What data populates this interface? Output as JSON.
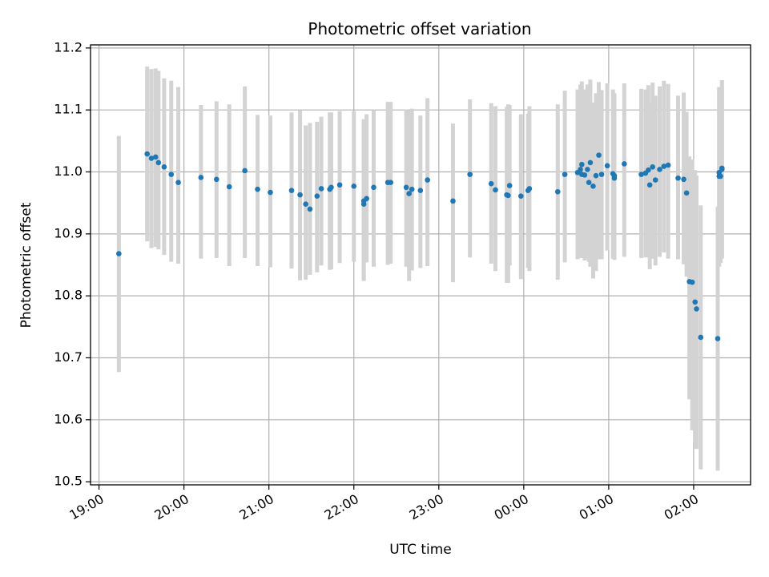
{
  "chart_data": {
    "type": "scatter",
    "title": "Photometric offset variation",
    "xlabel": "UTC time",
    "ylabel": "Photometric offset",
    "x_tick_labels": [
      "19:00",
      "20:00",
      "21:00",
      "22:00",
      "23:00",
      "00:00",
      "01:00",
      "02:00"
    ],
    "x_tick_hours": [
      19,
      20,
      21,
      22,
      23,
      24,
      25,
      26
    ],
    "y_ticks": [
      10.5,
      10.6,
      10.7,
      10.8,
      10.9,
      11.0,
      11.1,
      11.2
    ],
    "y_tick_labels": [
      "10.5",
      "10.6",
      "10.7",
      "10.8",
      "10.9",
      "11.0",
      "11.1",
      "11.2"
    ],
    "xlim_hours": [
      18.9,
      26.67
    ],
    "ylim": [
      10.495,
      11.205
    ],
    "grid": true,
    "colors": {
      "point": "#1f77b4",
      "errorbar": "#d3d3d3",
      "grid": "#b0b0b0"
    },
    "series": [
      {
        "time": [
          "19:14",
          "19:34",
          "19:37",
          "19:40",
          "19:42",
          "19:46",
          "19:51",
          "19:56",
          "20:12",
          "20:23",
          "20:32",
          "20:43",
          "20:52",
          "21:01",
          "21:16",
          "21:22",
          "21:26",
          "21:29",
          "21:34",
          "21:37",
          "21:43",
          "21:44",
          "21:50",
          "22:00",
          "22:07",
          "22:07",
          "22:09",
          "22:14",
          "22:24",
          "22:26",
          "22:37",
          "22:39",
          "22:41",
          "22:47",
          "22:52",
          "23:10",
          "23:22",
          "23:37",
          "23:40",
          "23:48",
          "23:49",
          "23:50",
          "23:58",
          "00:03",
          "00:04",
          "00:24",
          "00:29",
          "00:38",
          "00:40",
          "00:41",
          "00:41",
          "00:43",
          "00:45",
          "00:46",
          "00:47",
          "00:49",
          "00:51",
          "00:53",
          "00:55",
          "00:59",
          "01:03",
          "01:04",
          "01:04",
          "01:11",
          "01:23",
          "01:26",
          "01:28",
          "01:29",
          "01:31",
          "01:33",
          "01:36",
          "01:39",
          "01:42",
          "01:49",
          "01:53",
          "01:55",
          "01:57",
          "01:59",
          "02:01",
          "02:02",
          "02:05",
          "02:17",
          "02:18",
          "02:18",
          "02:19",
          "02:20",
          "02:20"
        ],
        "offset": [
          10.868,
          11.029,
          11.022,
          11.024,
          11.015,
          11.008,
          10.996,
          10.983,
          10.991,
          10.988,
          10.976,
          11.002,
          10.972,
          10.967,
          10.97,
          10.963,
          10.948,
          10.94,
          10.961,
          10.973,
          10.972,
          10.975,
          10.979,
          10.977,
          10.948,
          10.953,
          10.957,
          10.975,
          10.983,
          10.983,
          10.975,
          10.965,
          10.972,
          10.97,
          10.987,
          10.953,
          10.996,
          10.981,
          10.971,
          10.963,
          10.962,
          10.978,
          10.961,
          10.97,
          10.973,
          10.968,
          10.996,
          10.999,
          11.004,
          11.012,
          10.996,
          10.995,
          11.004,
          10.983,
          11.015,
          10.977,
          10.994,
          11.027,
          10.996,
          11.01,
          10.997,
          10.994,
          10.99,
          11.013,
          10.996,
          10.998,
          11.003,
          10.979,
          11.008,
          10.987,
          11.004,
          11.009,
          11.011,
          10.99,
          10.988,
          10.966,
          10.823,
          10.822,
          10.79,
          10.779,
          10.733,
          10.731,
          10.999,
          10.993,
          10.993,
          11.006,
          11.004
        ],
        "err_low": [
          10.677,
          10.888,
          10.877,
          10.879,
          10.875,
          10.866,
          10.855,
          10.852,
          10.86,
          10.861,
          10.848,
          10.861,
          10.848,
          10.846,
          10.844,
          10.825,
          10.826,
          10.834,
          10.838,
          10.849,
          10.842,
          10.843,
          10.853,
          10.855,
          10.826,
          10.824,
          10.854,
          10.847,
          10.85,
          10.852,
          10.847,
          10.824,
          10.841,
          10.845,
          10.848,
          10.822,
          10.862,
          10.852,
          10.84,
          10.821,
          10.821,
          10.849,
          10.827,
          10.845,
          10.84,
          10.826,
          10.854,
          10.859,
          10.861,
          10.864,
          10.862,
          10.857,
          10.86,
          10.855,
          10.847,
          10.828,
          10.84,
          10.859,
          10.859,
          10.873,
          10.86,
          10.864,
          10.858,
          10.863,
          10.861,
          10.862,
          10.862,
          10.843,
          10.86,
          10.849,
          10.863,
          10.87,
          10.86,
          10.859,
          10.851,
          10.831,
          10.633,
          10.583,
          10.563,
          10.553,
          10.52,
          10.518,
          10.862,
          10.847,
          10.853,
          10.86,
          10.864
        ],
        "err_high": [
          11.058,
          11.17,
          11.166,
          11.167,
          11.163,
          11.151,
          11.147,
          11.137,
          11.108,
          11.114,
          11.109,
          11.138,
          11.092,
          11.091,
          11.096,
          11.099,
          11.075,
          11.079,
          11.081,
          11.089,
          11.096,
          11.096,
          11.098,
          11.098,
          11.079,
          11.085,
          11.093,
          11.1,
          11.113,
          11.113,
          11.101,
          11.099,
          11.102,
          11.091,
          11.119,
          11.078,
          11.117,
          11.111,
          11.106,
          11.105,
          11.109,
          11.108,
          11.093,
          11.094,
          11.106,
          11.109,
          11.131,
          11.133,
          11.141,
          11.146,
          11.13,
          11.133,
          11.141,
          11.108,
          11.149,
          11.112,
          11.127,
          11.145,
          11.132,
          11.143,
          11.133,
          11.127,
          11.123,
          11.143,
          11.134,
          11.133,
          11.14,
          11.112,
          11.144,
          11.123,
          11.138,
          11.147,
          11.142,
          11.123,
          11.128,
          11.097,
          11.025,
          11.02,
          11.003,
          10.994,
          10.946,
          10.944,
          11.137,
          11.131,
          11.126,
          11.138,
          11.148
        ]
      }
    ]
  }
}
